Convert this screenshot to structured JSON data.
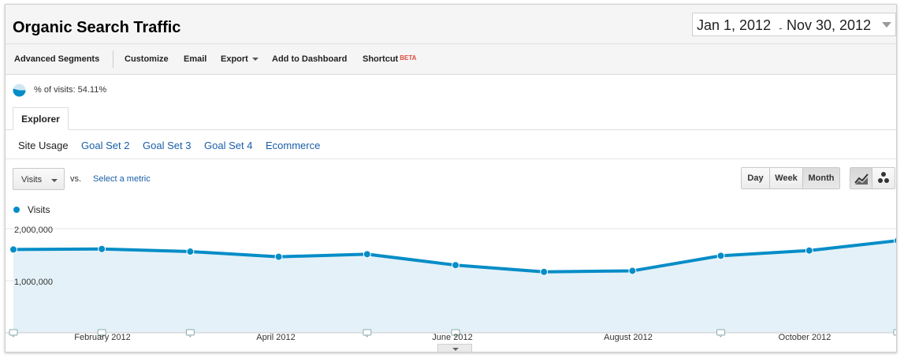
{
  "header": {
    "title": "Organic Search Traffic",
    "date_start": "Jan 1, 2012",
    "date_separator": "-",
    "date_end": "Nov 30, 2012"
  },
  "toolbar": {
    "advanced_segments": "Advanced Segments",
    "customize": "Customize",
    "email": "Email",
    "export": "Export",
    "add_to_dashboard": "Add to Dashboard",
    "shortcut": "Shortcut",
    "shortcut_badge": "BETA"
  },
  "segment": {
    "label": "% of visits: 54.11%",
    "fraction": 0.5411,
    "color": "#058dc7"
  },
  "tabs": {
    "explorer": "Explorer"
  },
  "subtabs": [
    {
      "label": "Site Usage",
      "active": true
    },
    {
      "label": "Goal Set 2",
      "active": false
    },
    {
      "label": "Goal Set 3",
      "active": false
    },
    {
      "label": "Goal Set 4",
      "active": false
    },
    {
      "label": "Ecommerce",
      "active": false
    }
  ],
  "controls": {
    "metric": "Visits",
    "vs": "vs.",
    "select_metric": "Select a metric",
    "granularity": [
      "Day",
      "Week",
      "Month"
    ],
    "granularity_selected": "Month",
    "chart_modes": [
      "line-chart-icon",
      "motion-chart-icon"
    ]
  },
  "chart_data": {
    "type": "area",
    "legend": "Visits",
    "legend_position": "top-left",
    "series": [
      {
        "name": "Visits",
        "color": "#058dc7",
        "x": [
          "Jan 2012",
          "Feb 2012",
          "Mar 2012",
          "Apr 2012",
          "May 2012",
          "Jun 2012",
          "Jul 2012",
          "Aug 2012",
          "Sep 2012",
          "Oct 2012",
          "Nov 2012"
        ],
        "values": [
          1600000,
          1610000,
          1560000,
          1460000,
          1510000,
          1300000,
          1170000,
          1190000,
          1480000,
          1580000,
          1770000
        ]
      }
    ],
    "yticks": [
      "2,000,000",
      "1,000,000"
    ],
    "ytick_values": [
      2000000,
      1000000
    ],
    "ylim": [
      0,
      2000000
    ],
    "xticks": [
      "February 2012",
      "April 2012",
      "June 2012",
      "August 2012",
      "October 2012"
    ],
    "grid": true,
    "annotation_markers": [
      "Jan 2012",
      "Feb 2012",
      "Mar 2012",
      "May 2012",
      "Jun 2012",
      "Sep 2012",
      "Nov 2012"
    ]
  }
}
